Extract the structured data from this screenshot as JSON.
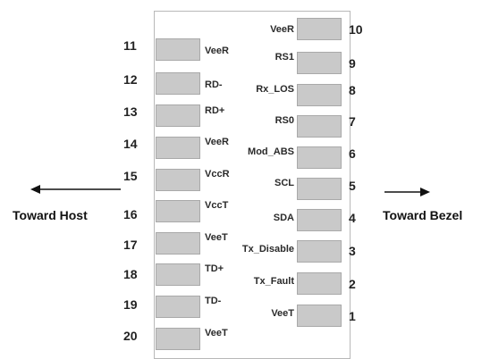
{
  "directions": {
    "host": "Toward Host",
    "bezel": "Toward Bezel"
  },
  "pins_left": [
    {
      "num": "11",
      "label": "VeeR"
    },
    {
      "num": "12",
      "label": "RD-"
    },
    {
      "num": "13",
      "label": "RD+"
    },
    {
      "num": "14",
      "label": "VeeR"
    },
    {
      "num": "15",
      "label": "VccR"
    },
    {
      "num": "16",
      "label": "VccT"
    },
    {
      "num": "17",
      "label": "VeeT"
    },
    {
      "num": "18",
      "label": "TD+"
    },
    {
      "num": "19",
      "label": "TD-"
    },
    {
      "num": "20",
      "label": "VeeT"
    }
  ],
  "pins_right": [
    {
      "num": "10",
      "label": "VeeR"
    },
    {
      "num": "9",
      "label": "RS1"
    },
    {
      "num": "8",
      "label": "Rx_LOS"
    },
    {
      "num": "7",
      "label": "RS0"
    },
    {
      "num": "6",
      "label": "Mod_ABS"
    },
    {
      "num": "5",
      "label": "SCL"
    },
    {
      "num": "4",
      "label": "SDA"
    },
    {
      "num": "3",
      "label": "Tx_Disable"
    },
    {
      "num": "2",
      "label": "Tx_Fault"
    },
    {
      "num": "1",
      "label": "VeeT"
    }
  ]
}
